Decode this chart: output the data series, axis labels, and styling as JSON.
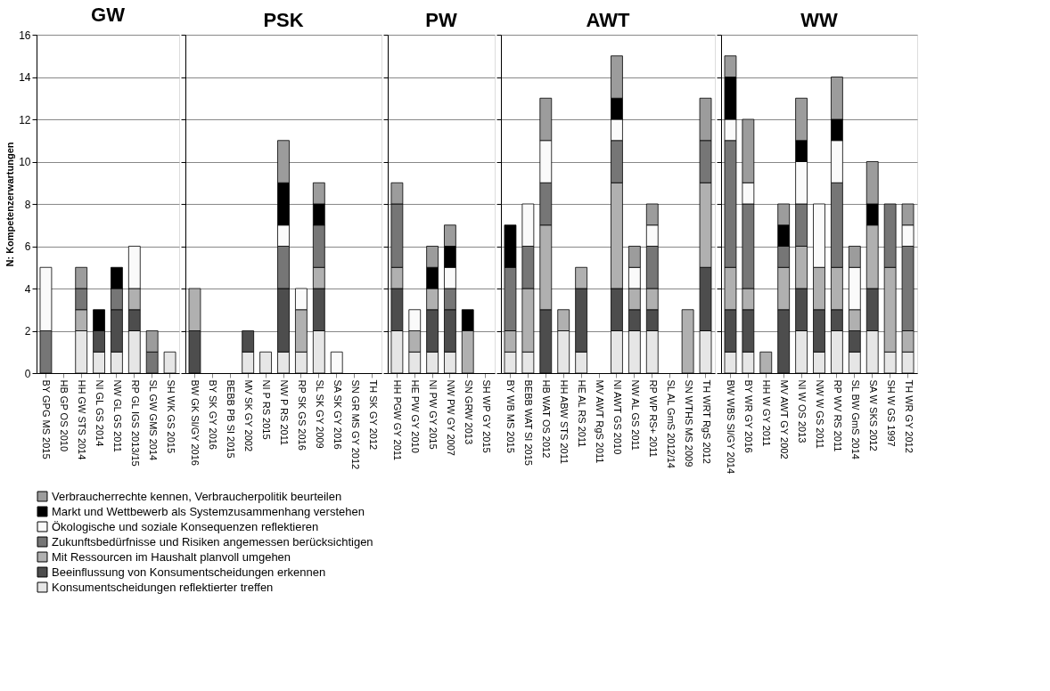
{
  "chart_data": [
    {
      "type": "bar",
      "stacked": true,
      "title": "GW",
      "ylabel": "N: Kompetenzerwartungen",
      "ylim": [
        0,
        16
      ],
      "yticks": [
        0,
        2,
        4,
        6,
        8,
        10,
        12,
        14,
        16
      ],
      "grid": "y",
      "legend": "bottom",
      "categories": [
        "BY GPG MS 2015",
        "HB GP OS 2010",
        "HH GW STS 2014",
        "NI GL GS 2014",
        "NW GL GS 2011",
        "RP GL IGS 2013/15",
        "SL GW GMS 2014",
        "SH WK GS 2015"
      ],
      "series": [
        {
          "name": "Konsumentscheidungen reflektierter treffen",
          "color": "#e6e6e6",
          "values": [
            0,
            0,
            2,
            1,
            1,
            2,
            0,
            1
          ]
        },
        {
          "name": "Beeinflussung von Konsumentscheidungen erkennen",
          "color": "#4d4d4d",
          "values": [
            0,
            0,
            0,
            1,
            2,
            1,
            0,
            0
          ]
        },
        {
          "name": "Mit Ressourcen im Haushalt planvoll umgehen",
          "color": "#b0b0b0",
          "values": [
            0,
            0,
            1,
            0,
            0,
            1,
            0,
            0
          ]
        },
        {
          "name": "Zukunftsbedürfnisse und Risiken angemessen berücksichtigen",
          "color": "#767676",
          "values": [
            2,
            0,
            1,
            0,
            1,
            0,
            1,
            0
          ]
        },
        {
          "name": "Ökologische und soziale Konsequenzen reflektieren",
          "color": "#fafafa",
          "values": [
            3,
            0,
            0,
            0,
            0,
            2,
            0,
            0
          ]
        },
        {
          "name": "Markt und Wettbewerb als Systemzusammenhang verstehen",
          "color": "#000000",
          "values": [
            0,
            0,
            0,
            1,
            1,
            0,
            0,
            0
          ]
        },
        {
          "name": "Verbraucherrechte kennen, Verbraucherpolitik beurteilen",
          "color": "#9c9c9c",
          "values": [
            0,
            0,
            1,
            0,
            0,
            0,
            1,
            0
          ]
        }
      ]
    },
    {
      "type": "bar",
      "stacked": true,
      "title": "PSK",
      "ylim": [
        0,
        16
      ],
      "yticks": [
        0,
        2,
        4,
        6,
        8,
        10,
        12,
        14,
        16
      ],
      "grid": "y",
      "tick_labels": "x",
      "categories": [
        "BW GK SI/GY 2016",
        "BY SK GY 2016",
        "BEBB PB SI 2015",
        "MV SK GY 2002",
        "NI P RS 2015",
        "NW P RS 2011",
        "RP SK GS 2016",
        "SL SK GY 2009",
        "SA SK GY 2016",
        "SN GR MS GY 2012",
        "TH SK GY 2012"
      ],
      "series": [
        {
          "color": "#e6e6e6",
          "values": [
            0,
            0,
            0,
            1,
            1,
            1,
            1,
            2,
            0,
            0,
            0
          ]
        },
        {
          "color": "#4d4d4d",
          "values": [
            2,
            0,
            0,
            1,
            0,
            3,
            0,
            2,
            0,
            0,
            0
          ]
        },
        {
          "color": "#b0b0b0",
          "values": [
            2,
            0,
            0,
            0,
            0,
            0,
            2,
            1,
            0,
            0,
            0
          ]
        },
        {
          "color": "#767676",
          "values": [
            0,
            0,
            0,
            0,
            0,
            2,
            0,
            2,
            0,
            0,
            0
          ]
        },
        {
          "color": "#fafafa",
          "values": [
            0,
            0,
            0,
            0,
            0,
            1,
            1,
            0,
            1,
            0,
            0
          ]
        },
        {
          "color": "#000000",
          "values": [
            0,
            0,
            0,
            0,
            0,
            2,
            0,
            1,
            0,
            0,
            0
          ]
        },
        {
          "color": "#9c9c9c",
          "values": [
            0,
            0,
            0,
            0,
            0,
            2,
            0,
            1,
            0,
            0,
            0
          ]
        }
      ]
    },
    {
      "type": "bar",
      "stacked": true,
      "title": "PW",
      "ylim": [
        0,
        16
      ],
      "yticks": [
        0,
        2,
        4,
        6,
        8,
        10,
        12,
        14,
        16
      ],
      "grid": "y",
      "tick_labels": "x",
      "categories": [
        "HH PGW GY 2011",
        "HE PW GY 2010",
        "NI PW GY 2015",
        "NW PW GY 2007",
        "SN GRW 2013",
        "SH WP GY 2015"
      ],
      "series": [
        {
          "color": "#e6e6e6",
          "values": [
            2,
            1,
            1,
            1,
            0,
            0
          ]
        },
        {
          "color": "#4d4d4d",
          "values": [
            2,
            0,
            2,
            2,
            0,
            0
          ]
        },
        {
          "color": "#b0b0b0",
          "values": [
            1,
            1,
            1,
            0,
            2,
            0
          ]
        },
        {
          "color": "#767676",
          "values": [
            3,
            0,
            0,
            1,
            0,
            0
          ]
        },
        {
          "color": "#fafafa",
          "values": [
            0,
            1,
            0,
            1,
            0,
            0
          ]
        },
        {
          "color": "#000000",
          "values": [
            0,
            0,
            1,
            1,
            1,
            0
          ]
        },
        {
          "color": "#9c9c9c",
          "values": [
            1,
            0,
            1,
            1,
            0,
            0
          ]
        }
      ]
    },
    {
      "type": "bar",
      "stacked": true,
      "title": "AWT",
      "ylim": [
        0,
        16
      ],
      "yticks": [
        0,
        2,
        4,
        6,
        8,
        10,
        12,
        14,
        16
      ],
      "grid": "y",
      "tick_labels": "x",
      "categories": [
        "BY WB MS 2015",
        "BEBB WAT SI 2015",
        "HB WAT OS 2012",
        "HH ABW STS 2011",
        "HE AL RS 2011",
        "MV AWT RgS 2011",
        "NI AWT GS 2010",
        "NW AL GS 2011",
        "RP WP RS+ 2011",
        "SL AL GmS 2012/14",
        "SN WTHS MS 2009",
        "TH WRT RgS 2012"
      ],
      "series": [
        {
          "color": "#e6e6e6",
          "values": [
            1,
            1,
            0,
            2,
            1,
            0,
            2,
            2,
            2,
            0,
            0,
            2
          ]
        },
        {
          "color": "#4d4d4d",
          "values": [
            0,
            0,
            3,
            0,
            3,
            0,
            2,
            1,
            1,
            0,
            0,
            3
          ]
        },
        {
          "color": "#b0b0b0",
          "values": [
            1,
            3,
            4,
            1,
            1,
            0,
            5,
            1,
            1,
            0,
            3,
            4
          ]
        },
        {
          "color": "#767676",
          "values": [
            3,
            2,
            2,
            0,
            0,
            0,
            2,
            0,
            2,
            0,
            0,
            2
          ]
        },
        {
          "color": "#fafafa",
          "values": [
            0,
            2,
            2,
            0,
            0,
            0,
            1,
            1,
            1,
            0,
            0,
            0
          ]
        },
        {
          "color": "#000000",
          "values": [
            2,
            0,
            0,
            0,
            0,
            0,
            1,
            0,
            0,
            0,
            0,
            0
          ]
        },
        {
          "color": "#9c9c9c",
          "values": [
            0,
            0,
            2,
            0,
            0,
            0,
            2,
            1,
            1,
            0,
            0,
            2
          ]
        }
      ]
    },
    {
      "type": "bar",
      "stacked": true,
      "title": "WW",
      "ylim": [
        0,
        16
      ],
      "yticks": [
        0,
        2,
        4,
        6,
        8,
        10,
        12,
        14,
        16
      ],
      "grid": "y",
      "tick_labels": "x",
      "categories": [
        "BW WBS SI/GY 2014",
        "BY WR GY 2016",
        "HH W GY 2011",
        "MV AWT GY 2002",
        "NI W OS 2013",
        "NW W GS 2011",
        "RP WV RS 2011",
        "SL BW GmS 2014",
        "SA W SKS 2012",
        "SH W GS 1997",
        "TH WR GY 2012"
      ],
      "series": [
        {
          "color": "#e6e6e6",
          "values": [
            1,
            1,
            0,
            0,
            2,
            1,
            2,
            1,
            2,
            1,
            1
          ]
        },
        {
          "color": "#4d4d4d",
          "values": [
            2,
            2,
            0,
            3,
            2,
            2,
            1,
            1,
            2,
            0,
            0
          ]
        },
        {
          "color": "#b0b0b0",
          "values": [
            2,
            1,
            1,
            2,
            2,
            2,
            2,
            1,
            3,
            4,
            1
          ]
        },
        {
          "color": "#767676",
          "values": [
            6,
            4,
            0,
            1,
            2,
            0,
            4,
            0,
            0,
            3,
            4
          ]
        },
        {
          "color": "#fafafa",
          "values": [
            1,
            1,
            0,
            0,
            2,
            3,
            2,
            2,
            0,
            0,
            1
          ]
        },
        {
          "color": "#000000",
          "values": [
            2,
            0,
            0,
            1,
            1,
            0,
            1,
            0,
            1,
            0,
            0
          ]
        },
        {
          "color": "#9c9c9c",
          "values": [
            1,
            3,
            0,
            1,
            2,
            0,
            2,
            1,
            2,
            0,
            1
          ]
        }
      ]
    }
  ]
}
